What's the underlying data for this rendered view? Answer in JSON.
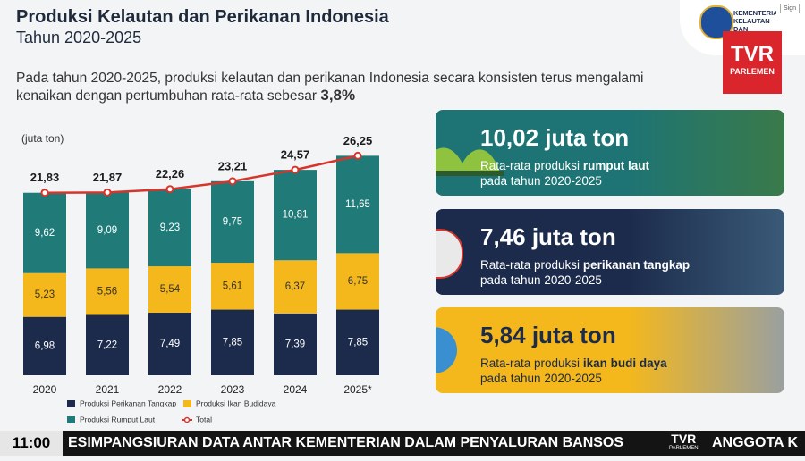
{
  "header": {
    "title": "Produksi Kelautan dan Perikanan Indonesia",
    "subtitle": "Tahun 2020-2025"
  },
  "intro": {
    "line1": "Pada tahun 2020-2025, produksi kelautan dan perikanan Indonesia secara konsisten terus mengalami",
    "line2": "kenaikan dengan pertumbuhan rata-rata sebesar",
    "highlight": "3,8%"
  },
  "logos": {
    "ministry": "KEMENTERIAN KELAUTAN DAN PERIKANAN",
    "sign": "Sign",
    "channel": "TVR",
    "channel_sub": "PARLEMEN"
  },
  "chart_data": {
    "type": "bar",
    "stacked": true,
    "y_label": "(juta ton)",
    "categories": [
      "2020",
      "2021",
      "2022",
      "2023",
      "2024",
      "2025*"
    ],
    "ylim": [
      0,
      28
    ],
    "series": [
      {
        "name": "Produksi Perikanan Tangkap",
        "color": "#1c2b4b",
        "values": [
          6.98,
          7.22,
          7.49,
          7.85,
          7.39,
          7.85
        ],
        "value_labels": [
          "6,98",
          "7,22",
          "7,49",
          "7,85",
          "7,39",
          "7,85"
        ]
      },
      {
        "name": "Produksi Ikan Budidaya",
        "color": "#f4b81c",
        "values": [
          5.23,
          5.56,
          5.54,
          5.61,
          6.37,
          6.75
        ],
        "value_labels": [
          "5,23",
          "5,56",
          "5,54",
          "5,61",
          "6,37",
          "6,75"
        ]
      },
      {
        "name": "Produksi Rumput Laut",
        "color": "#1f7a78",
        "values": [
          9.62,
          9.09,
          9.23,
          9.75,
          10.81,
          11.65
        ],
        "value_labels": [
          "9,62",
          "9,09",
          "9,23",
          "9,75",
          "10,81",
          "11,65"
        ]
      }
    ],
    "line_series": {
      "name": "Total",
      "color": "#d6352c",
      "values": [
        21.83,
        21.87,
        22.26,
        23.21,
        24.57,
        26.25
      ],
      "value_labels": [
        "21,83",
        "21,87",
        "22,26",
        "23,21",
        "24,57",
        "26,25"
      ]
    }
  },
  "cards": [
    {
      "value": "10,02 juta ton",
      "prefix": "Rata-rata produksi ",
      "bold": "rumput laut",
      "line2": "pada tahun 2020-2025"
    },
    {
      "value": "7,46 juta ton",
      "prefix": "Rata-rata produksi ",
      "bold": "perikanan tangkap",
      "line2": "pada tahun 2020-2025"
    },
    {
      "value": "5,84 juta ton",
      "prefix": "Rata-rata produksi ",
      "bold": "ikan budi daya",
      "line2": "pada tahun 2020-2025"
    }
  ],
  "ticker": {
    "time": "11:00",
    "headline": "ESIMPANGSIURAN DATA ANTAR KEMENTERIAN DALAM PENYALURAN BANSOS",
    "logo": "TVR",
    "logo_sub": "PARLEMEN",
    "next": "ANGGOTA K"
  }
}
